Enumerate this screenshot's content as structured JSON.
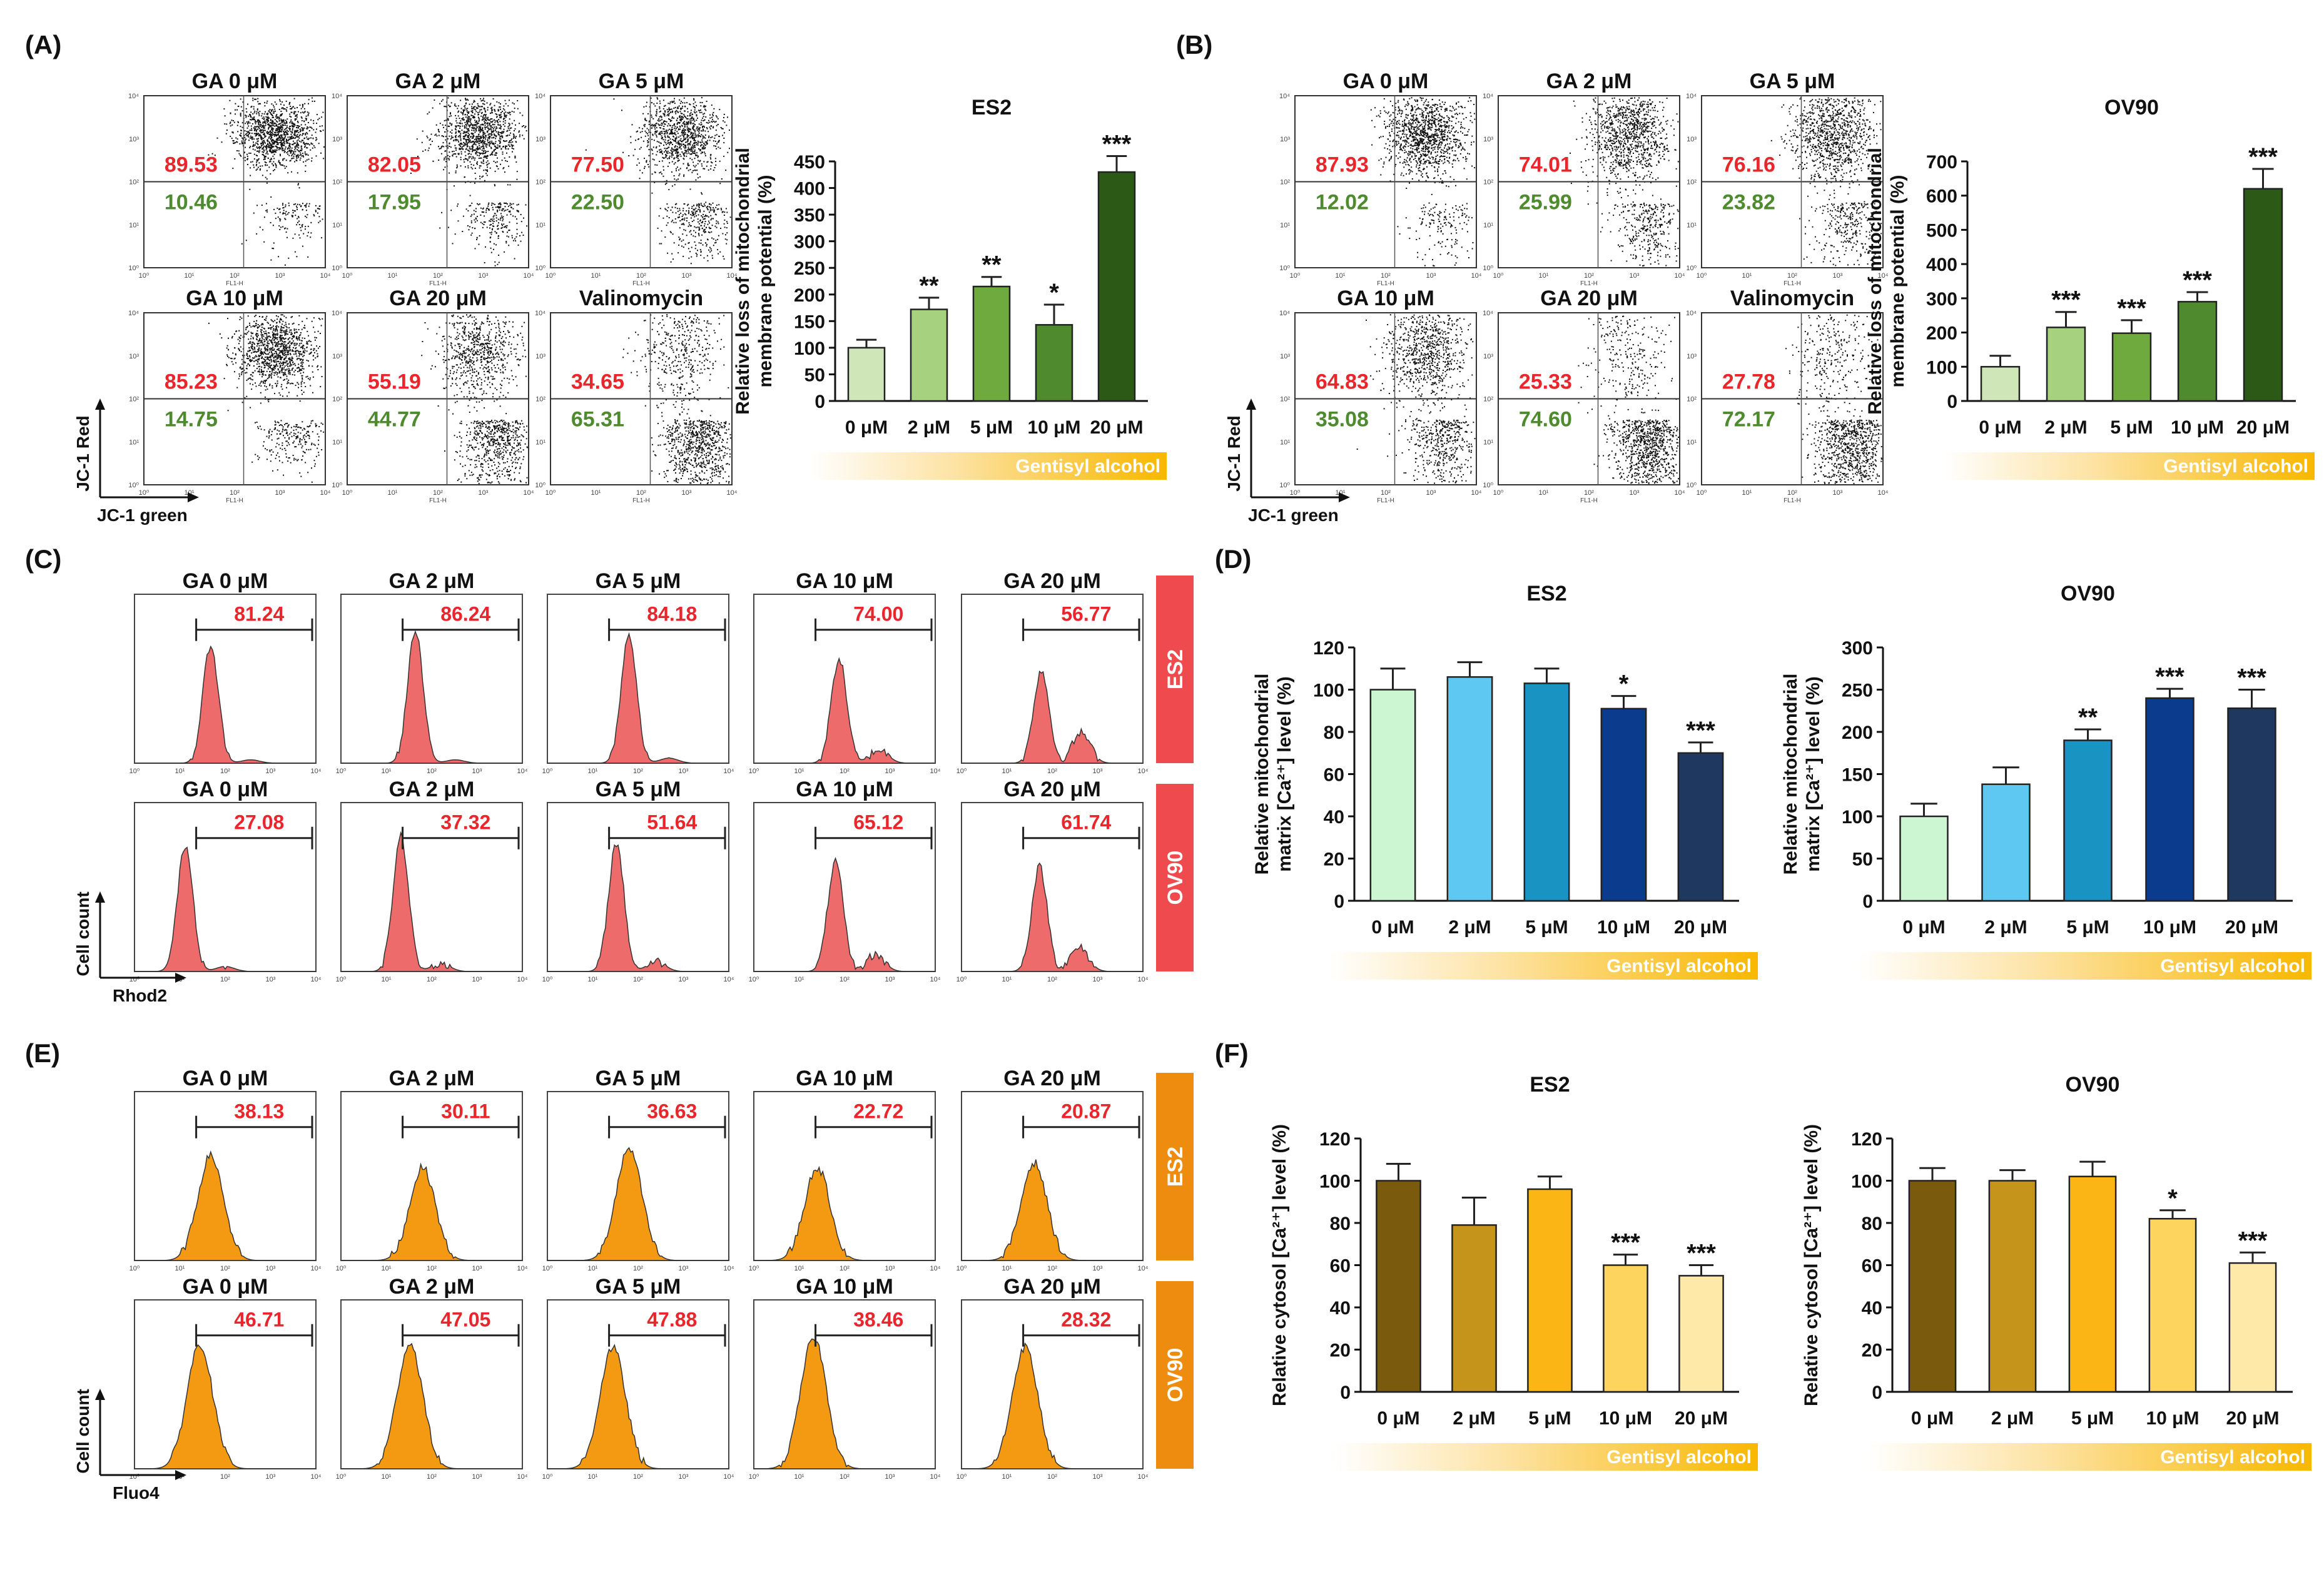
{
  "panels": {
    "A": {
      "label": "(A)",
      "axis_y": "JC-1 Red",
      "axis_x": "JC-1 green",
      "dotplots": [
        {
          "title": "GA 0 μM",
          "upper": "89.53",
          "lower": "10.46"
        },
        {
          "title": "GA 2 μM",
          "upper": "82.05",
          "lower": "17.95"
        },
        {
          "title": "GA 5 μM",
          "upper": "77.50",
          "lower": "22.50"
        },
        {
          "title": "GA 10 μM",
          "upper": "85.23",
          "lower": "14.75"
        },
        {
          "title": "GA 20 μM",
          "upper": "55.19",
          "lower": "44.77"
        },
        {
          "title": "Valinomycin",
          "upper": "34.65",
          "lower": "65.31"
        }
      ]
    },
    "B": {
      "label": "(B)",
      "axis_y": "JC-1 Red",
      "axis_x": "JC-1 green",
      "dotplots": [
        {
          "title": "GA 0 μM",
          "upper": "87.93",
          "lower": "12.02"
        },
        {
          "title": "GA 2 μM",
          "upper": "74.01",
          "lower": "25.99"
        },
        {
          "title": "GA 5 μM",
          "upper": "76.16",
          "lower": "23.82"
        },
        {
          "title": "GA 10 μM",
          "upper": "64.83",
          "lower": "35.08"
        },
        {
          "title": "GA 20 μM",
          "upper": "25.33",
          "lower": "74.60"
        },
        {
          "title": "Valinomycin",
          "upper": "27.78",
          "lower": "72.17"
        }
      ]
    },
    "C": {
      "label": "(C)",
      "axis_y": "Cell count",
      "axis_x": "Rhod2",
      "rows": [
        {
          "cell": "ES2",
          "titles": [
            "GA 0 μM",
            "GA 2 μM",
            "GA 5 μM",
            "GA 10 μM",
            "GA 20 μM"
          ],
          "values": [
            "81.24",
            "86.24",
            "84.18",
            "74.00",
            "56.77"
          ]
        },
        {
          "cell": "OV90",
          "titles": [
            "GA 0 μM",
            "GA 2 μM",
            "GA 5 μM",
            "GA 10 μM",
            "GA 20 μM"
          ],
          "values": [
            "27.08",
            "37.32",
            "51.64",
            "65.12",
            "61.74"
          ]
        }
      ]
    },
    "D": {
      "label": "(D)"
    },
    "E": {
      "label": "(E)",
      "axis_y": "Cell count",
      "axis_x": "Fluo4",
      "rows": [
        {
          "cell": "ES2",
          "titles": [
            "GA 0 μM",
            "GA 2 μM",
            "GA 5 μM",
            "GA 10 μM",
            "GA 20 μM"
          ],
          "values": [
            "38.13",
            "30.11",
            "36.63",
            "22.72",
            "20.87"
          ]
        },
        {
          "cell": "OV90",
          "titles": [
            "GA 0 μM",
            "GA 2 μM",
            "GA 5 μM",
            "GA 10 μM",
            "GA 20 μM"
          ],
          "values": [
            "46.71",
            "47.05",
            "47.88",
            "38.46",
            "28.32"
          ]
        }
      ]
    },
    "F": {
      "label": "(F)"
    }
  },
  "gradient_label": "Gentisyl alcohol",
  "colors": {
    "red_text": "#e8262b",
    "green_text": "#4e8a2e",
    "hist_red": "#ee6b6b",
    "hist_orange": "#f39a12",
    "tag_red": "#ef4b4f",
    "tag_orange": "#ee8c0f"
  },
  "chart_data": [
    {
      "id": "A",
      "type": "bar",
      "title": "ES2",
      "ylabel": "Relative loss of mitochondrial membrane potential (%)",
      "categories": [
        "0 μM",
        "2 μM",
        "5 μM",
        "10 μM",
        "20 μM"
      ],
      "values": [
        100,
        172,
        215,
        143,
        430
      ],
      "errors": [
        15,
        22,
        18,
        38,
        30
      ],
      "significance": [
        "",
        "**",
        "**",
        "*",
        "***"
      ],
      "ylim": [
        0,
        450
      ],
      "ticks": [
        0,
        50,
        100,
        150,
        200,
        250,
        300,
        350,
        400,
        450
      ],
      "colors": [
        "#cfe7b8",
        "#a6d17f",
        "#6eaa3e",
        "#4f8a2e",
        "#2c5a16"
      ]
    },
    {
      "id": "B",
      "type": "bar",
      "title": "OV90",
      "ylabel": "Relative loss of mitochondrial membrane potential (%)",
      "categories": [
        "0 μM",
        "2 μM",
        "5 μM",
        "10 μM",
        "20 μM"
      ],
      "values": [
        100,
        215,
        198,
        290,
        620
      ],
      "errors": [
        32,
        45,
        38,
        28,
        58
      ],
      "significance": [
        "",
        "***",
        "***",
        "***",
        "***"
      ],
      "ylim": [
        0,
        700
      ],
      "ticks": [
        0,
        100,
        200,
        300,
        400,
        500,
        600,
        700
      ],
      "colors": [
        "#cfe7b8",
        "#a6d17f",
        "#6eaa3e",
        "#4f8a2e",
        "#2c5a16"
      ]
    },
    {
      "id": "D1",
      "type": "bar",
      "title": "ES2",
      "ylabel": "Relative mitochondrial matrix [Ca²⁺] level (%)",
      "categories": [
        "0 μM",
        "2 μM",
        "5 μM",
        "10 μM",
        "20 μM"
      ],
      "values": [
        100,
        106,
        103,
        91,
        70
      ],
      "errors": [
        10,
        7,
        7,
        6,
        5
      ],
      "significance": [
        "",
        "",
        "",
        "*",
        "***"
      ],
      "ylim": [
        0,
        120
      ],
      "ticks": [
        0,
        20,
        40,
        60,
        80,
        100,
        120
      ],
      "colors": [
        "#ccf5d2",
        "#5ec8f2",
        "#1893c2",
        "#0b3b8c",
        "#1f3860"
      ]
    },
    {
      "id": "D2",
      "type": "bar",
      "title": "OV90",
      "ylabel": "Relative mitochondrial matrix [Ca²⁺] level (%)",
      "categories": [
        "0 μM",
        "2 μM",
        "5 μM",
        "10 μM",
        "20 μM"
      ],
      "values": [
        100,
        138,
        190,
        240,
        228
      ],
      "errors": [
        15,
        20,
        13,
        11,
        22
      ],
      "significance": [
        "",
        "",
        "**",
        "***",
        "***"
      ],
      "ylim": [
        0,
        300
      ],
      "ticks": [
        0,
        50,
        100,
        150,
        200,
        250,
        300
      ],
      "colors": [
        "#ccf5d2",
        "#5ec8f2",
        "#1893c2",
        "#0b3b8c",
        "#1f3860"
      ]
    },
    {
      "id": "F1",
      "type": "bar",
      "title": "ES2",
      "ylabel": "Relative cytosol [Ca²⁺] level (%)",
      "categories": [
        "0 μM",
        "2 μM",
        "5 μM",
        "10 μM",
        "20 μM"
      ],
      "values": [
        100,
        79,
        96,
        60,
        55
      ],
      "errors": [
        8,
        13,
        6,
        5,
        5
      ],
      "significance": [
        "",
        "",
        "",
        "***",
        "***"
      ],
      "ylim": [
        0,
        120
      ],
      "ticks": [
        0,
        20,
        40,
        60,
        80,
        100,
        120
      ],
      "colors": [
        "#7a5a0c",
        "#c4951a",
        "#fbb616",
        "#fdd45e",
        "#ffe9a8"
      ]
    },
    {
      "id": "F2",
      "type": "bar",
      "title": "OV90",
      "ylabel": "Relative cytosol [Ca²⁺] level (%)",
      "categories": [
        "0 μM",
        "2 μM",
        "5 μM",
        "10 μM",
        "20 μM"
      ],
      "values": [
        100,
        100,
        102,
        82,
        61
      ],
      "errors": [
        6,
        5,
        7,
        4,
        5
      ],
      "significance": [
        "",
        "",
        "",
        "*",
        "***"
      ],
      "ylim": [
        0,
        120
      ],
      "ticks": [
        0,
        20,
        40,
        60,
        80,
        100,
        120
      ],
      "colors": [
        "#7a5a0c",
        "#c4951a",
        "#fbb616",
        "#fdd45e",
        "#ffe9a8"
      ]
    }
  ]
}
